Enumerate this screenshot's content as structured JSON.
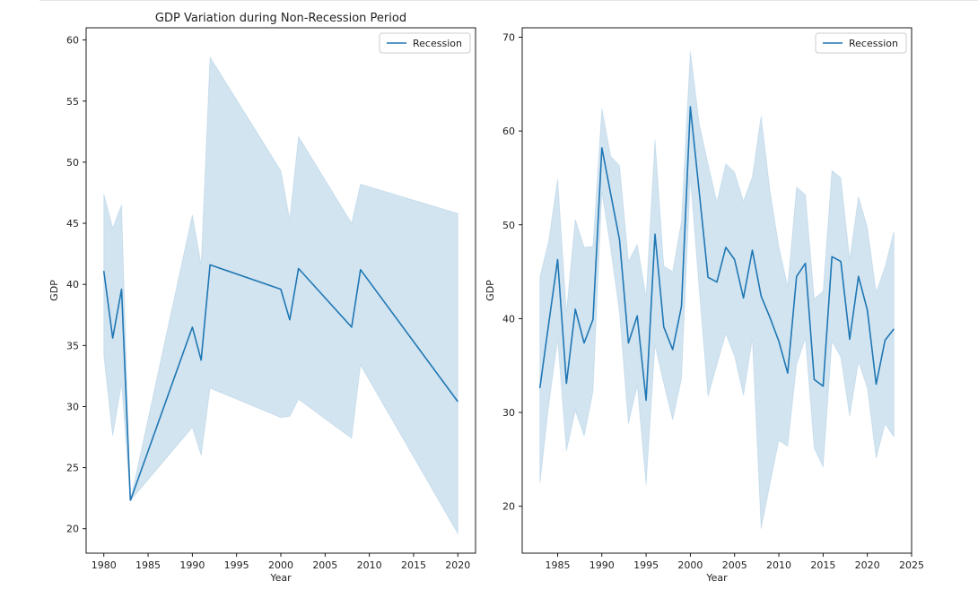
{
  "colors": {
    "line": "#1f77b4",
    "band": "#1f77b4",
    "axis": "#000000",
    "legend_border": "#cccccc"
  },
  "chart_data": [
    {
      "type": "line",
      "title": "GDP Variation during Non-Recession Period",
      "xlabel": "Year",
      "ylabel": "GDP",
      "xlim": [
        1978,
        2022
      ],
      "ylim": [
        18.0,
        61.0
      ],
      "xticks": [
        1980,
        1985,
        1990,
        1995,
        2000,
        2005,
        2010,
        2015,
        2020
      ],
      "yticks": [
        20,
        25,
        30,
        35,
        40,
        45,
        50,
        55,
        60
      ],
      "legend": "top-right",
      "grid": false,
      "series": [
        {
          "name": "Recession",
          "segments": [
            {
              "x": [
                1980,
                1981,
                1982,
                1983
              ],
              "y": [
                41.1,
                35.6,
                39.6,
                22.3
              ],
              "lower": [
                34.2,
                27.6,
                31.9,
                22.3
              ],
              "upper": [
                47.4,
                44.6,
                46.5,
                22.3
              ]
            },
            {
              "x": [
                1983,
                1990,
                1991,
                1992,
                2000,
                2001,
                2002,
                2008,
                2009,
                2020
              ],
              "y": [
                22.3,
                36.5,
                33.8,
                41.6,
                39.6,
                37.1,
                41.3,
                36.5,
                41.2,
                30.4
              ],
              "lower": [
                22.3,
                28.3,
                26.0,
                31.5,
                29.1,
                29.2,
                30.6,
                27.4,
                33.4,
                19.6
              ],
              "upper": [
                22.3,
                45.7,
                41.6,
                58.6,
                49.3,
                45.3,
                52.1,
                45.0,
                48.2,
                45.8
              ]
            }
          ]
        }
      ]
    },
    {
      "type": "line",
      "title": "",
      "xlabel": "Year",
      "ylabel": "GDP",
      "xlim": [
        1981,
        2025
      ],
      "ylim": [
        15.0,
        71.0
      ],
      "xticks": [
        1985,
        1990,
        1995,
        2000,
        2005,
        2010,
        2015,
        2020,
        2025
      ],
      "yticks": [
        20,
        30,
        40,
        50,
        60,
        70
      ],
      "legend": "top-right",
      "grid": false,
      "series": [
        {
          "name": "Recession",
          "segments": [
            {
              "x": [
                1983,
                1984,
                1985,
                1986,
                1987,
                1988,
                1989,
                1990,
                1991,
                1992,
                1993,
                1994,
                1995,
                1996,
                1997,
                1998,
                1999,
                2000,
                2001,
                2002,
                2003,
                2004,
                2005,
                2006,
                2007,
                2008,
                2009,
                2010,
                2011,
                2012,
                2013,
                2014,
                2015,
                2016,
                2017,
                2018,
                2019,
                2020,
                2021,
                2022,
                2023
              ],
              "y": [
                32.6,
                39.5,
                46.3,
                33.1,
                41.0,
                37.4,
                39.9,
                58.2,
                53.3,
                48.4,
                37.4,
                40.3,
                31.3,
                49.0,
                39.1,
                36.7,
                41.3,
                62.6,
                53.5,
                44.4,
                43.9,
                47.6,
                46.3,
                42.2,
                47.3,
                42.4,
                40.1,
                37.6,
                34.2,
                44.5,
                45.9,
                33.5,
                32.8,
                46.6,
                46.1,
                37.8,
                44.5,
                40.9,
                33.0,
                37.7,
                38.9
              ],
              "lower": [
                22.4,
                30.8,
                37.8,
                25.9,
                30.2,
                27.5,
                32.2,
                53.5,
                47.5,
                40.6,
                28.8,
                32.9,
                22.3,
                37.2,
                33.1,
                29.2,
                33.6,
                55.1,
                43.1,
                31.7,
                35.1,
                38.4,
                36.0,
                31.8,
                37.9,
                17.6,
                22.4,
                27.0,
                26.4,
                35.1,
                37.9,
                26.2,
                24.2,
                37.6,
                35.9,
                29.6,
                35.4,
                32.6,
                25.1,
                28.8,
                27.4
              ],
              "upper": [
                44.4,
                48.3,
                54.9,
                40.7,
                50.6,
                47.6,
                47.7,
                62.4,
                57.3,
                56.3,
                46.1,
                47.9,
                42.3,
                59.1,
                45.6,
                45.0,
                50.4,
                68.5,
                60.8,
                56.5,
                52.4,
                56.5,
                55.6,
                52.5,
                55.1,
                61.6,
                53.6,
                47.7,
                43.4,
                54.0,
                53.2,
                42.1,
                42.9,
                55.8,
                55.0,
                46.3,
                53.0,
                49.7,
                42.8,
                45.5,
                49.3
              ]
            }
          ]
        }
      ]
    }
  ]
}
